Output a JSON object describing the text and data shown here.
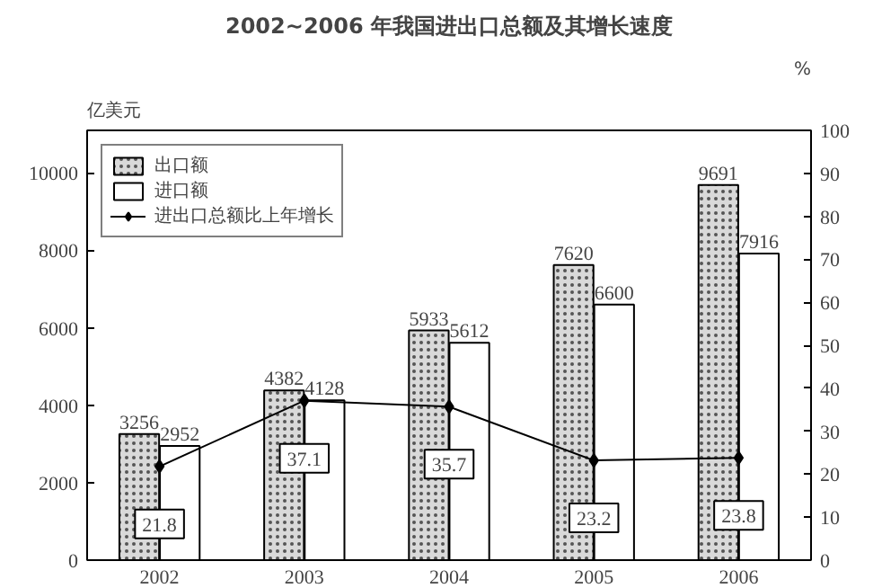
{
  "chart_data": {
    "type": "bar",
    "title": "2002~2006 年我国进出口总额及其增长速度",
    "ylabel": "亿美元",
    "y2label": "%",
    "categories": [
      "2002",
      "2003",
      "2004",
      "2005",
      "2006"
    ],
    "series": [
      {
        "name": "出口额",
        "color": "#d9d9d9",
        "values": [
          3256,
          4382,
          5933,
          7620,
          9691
        ]
      },
      {
        "name": "进口额",
        "color": "#ffffff",
        "values": [
          2952,
          4128,
          5612,
          6600,
          7916
        ]
      },
      {
        "name": "进出口总额比上年增长",
        "type": "line",
        "axis": "y2",
        "color": "#000000",
        "marker": "diamond",
        "values": [
          21.8,
          37.1,
          35.7,
          23.2,
          23.8
        ]
      }
    ],
    "ylim": [
      0,
      11100
    ],
    "yticks": [
      0,
      2000,
      4000,
      6000,
      8000,
      10000
    ],
    "y2lim": [
      0,
      100
    ],
    "y2ticks": [
      0,
      10,
      20,
      30,
      40,
      50,
      60,
      70,
      80,
      90,
      100
    ],
    "data_labels": true,
    "legend": "top left",
    "grid": false
  }
}
